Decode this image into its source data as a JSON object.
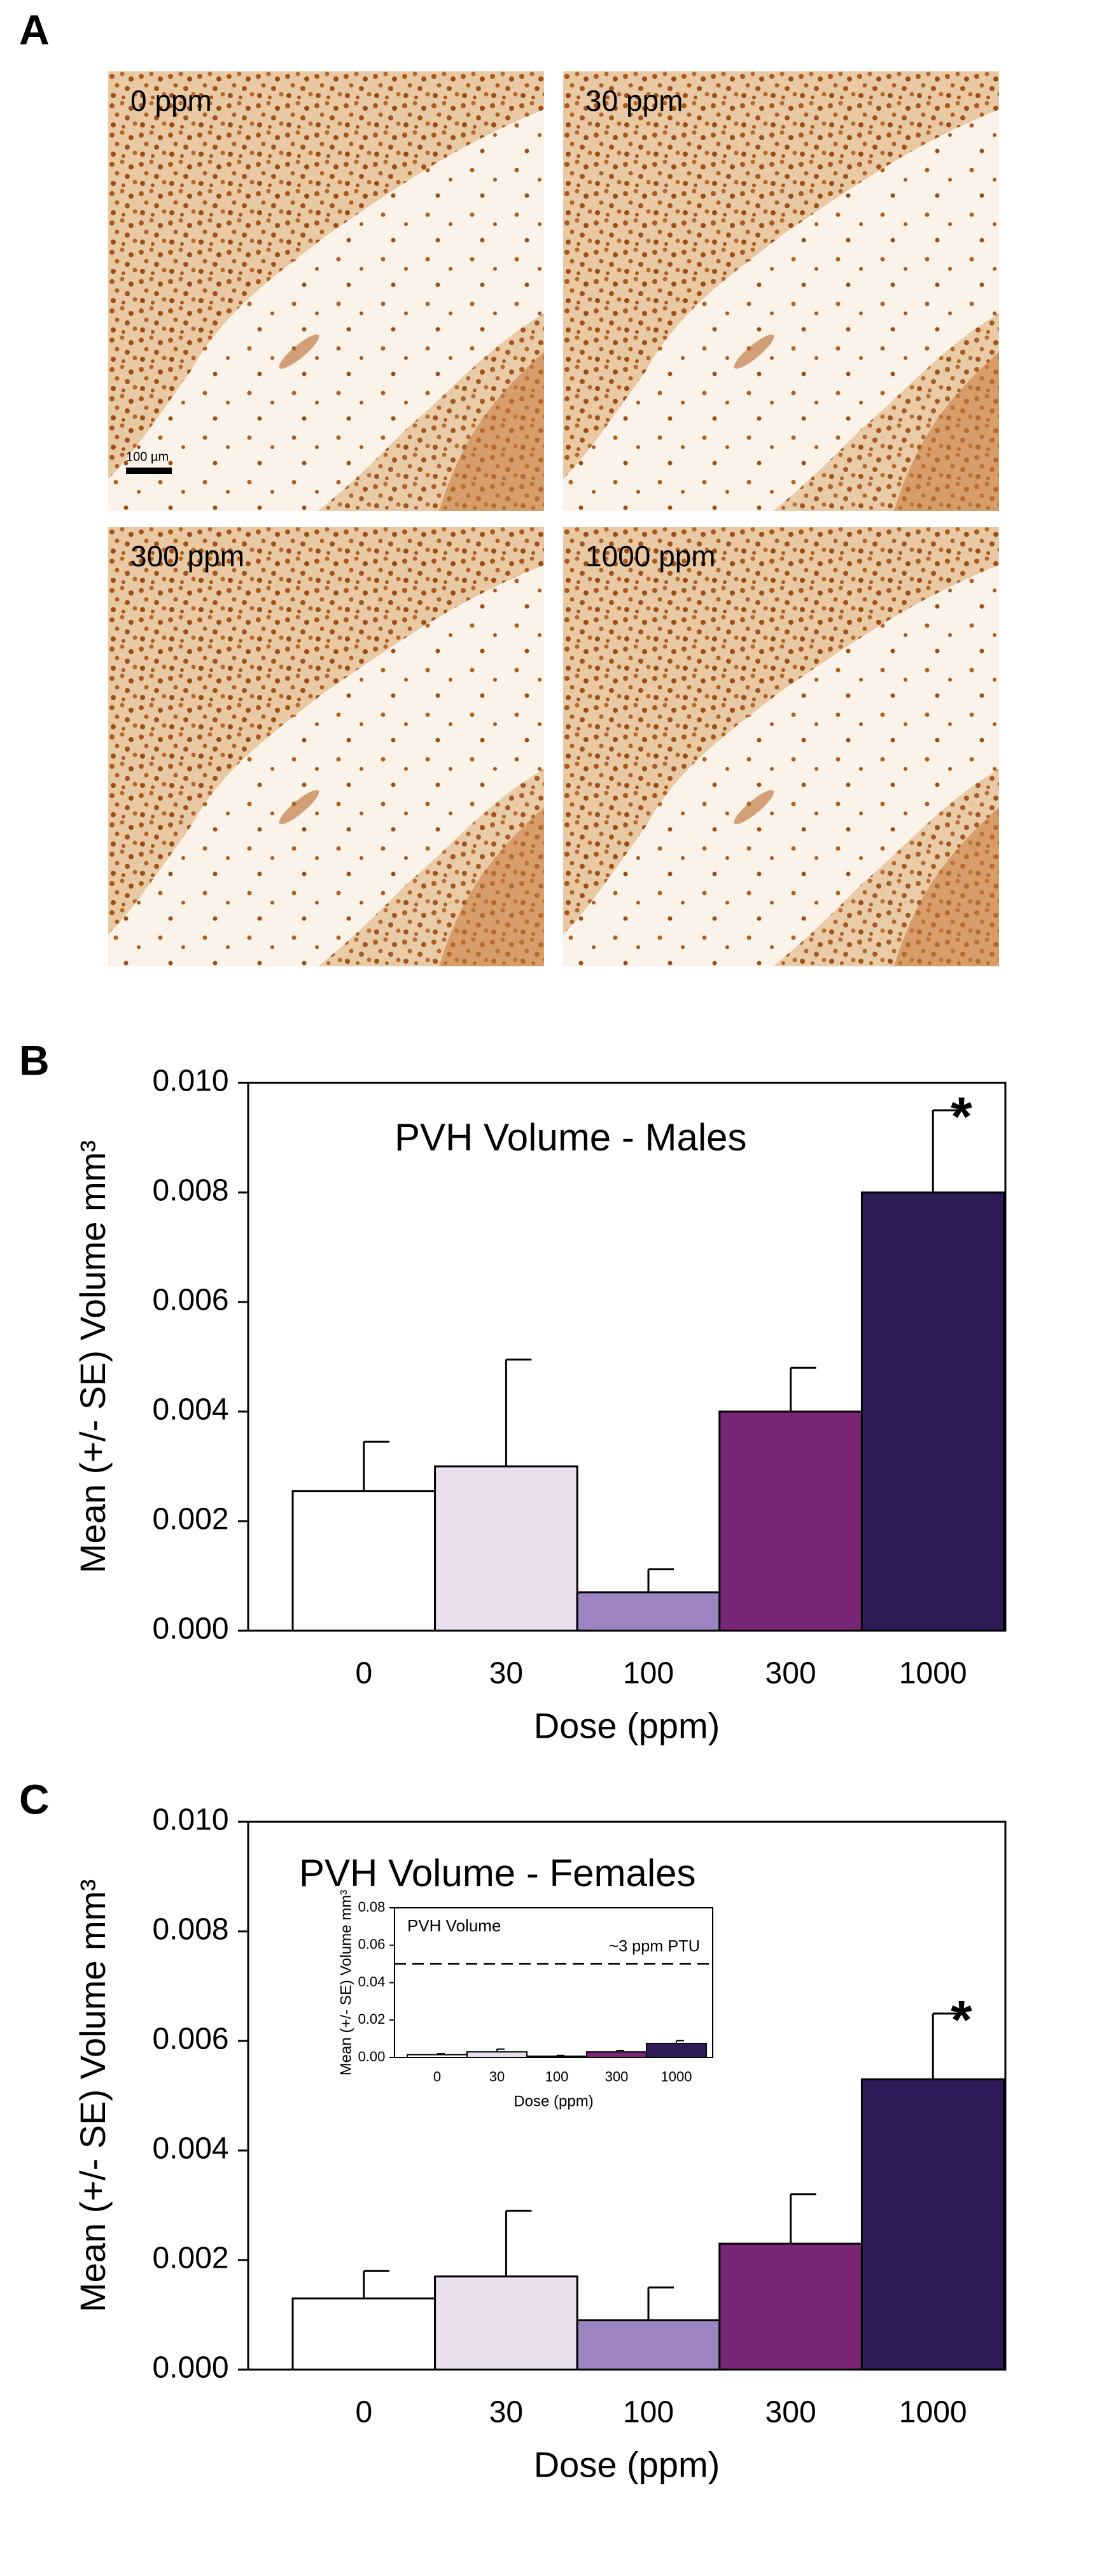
{
  "panel_a": {
    "label": "A",
    "images": [
      {
        "label": "0 ppm"
      },
      {
        "label": "30 ppm"
      },
      {
        "label": "300 ppm"
      },
      {
        "label": "1000 ppm"
      }
    ],
    "scale_bar": "100 µm"
  },
  "chart_data": [
    {
      "type": "bar",
      "panel": "B",
      "title": "PVH Volume - Males",
      "x_label": "Dose (ppm)",
      "y_label": "Mean (+/- SE) Volume mm³",
      "categories": [
        "0",
        "30",
        "100",
        "300",
        "1000"
      ],
      "values": [
        0.00255,
        0.003,
        0.0007,
        0.004,
        0.008
      ],
      "errors": [
        0.0009,
        0.00195,
        0.00042,
        0.0008,
        0.0015
      ],
      "colors": [
        "#ffffff",
        "#e9dfee",
        "#9d84c2",
        "#7a2677",
        "#2f1b57"
      ],
      "ylim": [
        0,
        0.01
      ],
      "yticks": [
        {
          "value": 0,
          "label": "0.000"
        },
        {
          "value": 0.002,
          "label": "0.002"
        },
        {
          "value": 0.004,
          "label": "0.004"
        },
        {
          "value": 0.006,
          "label": "0.006"
        },
        {
          "value": 0.008,
          "label": "0.008"
        },
        {
          "value": 0.01,
          "label": "0.010"
        }
      ],
      "annotation": {
        "text": "*",
        "category": "1000"
      }
    },
    {
      "type": "bar",
      "panel": "C",
      "title": "PVH Volume - Females",
      "x_label": "Dose (ppm)",
      "y_label": "Mean (+/- SE) Volume mm³",
      "categories": [
        "0",
        "30",
        "100",
        "300",
        "1000"
      ],
      "values": [
        0.0013,
        0.0017,
        0.0009,
        0.0023,
        0.0053
      ],
      "errors": [
        0.0005,
        0.0012,
        0.0006,
        0.0009,
        0.0012
      ],
      "colors": [
        "#ffffff",
        "#e9dfee",
        "#9d84c2",
        "#7a2677",
        "#2f1b57"
      ],
      "ylim": [
        0,
        0.01
      ],
      "yticks": [
        {
          "value": 0,
          "label": "0.000"
        },
        {
          "value": 0.002,
          "label": "0.002"
        },
        {
          "value": 0.004,
          "label": "0.004"
        },
        {
          "value": 0.006,
          "label": "0.006"
        },
        {
          "value": 0.008,
          "label": "0.008"
        },
        {
          "value": 0.01,
          "label": "0.010"
        }
      ],
      "annotation": {
        "text": "*",
        "category": "1000"
      },
      "inset": {
        "type": "bar",
        "title": "PVH Volume",
        "x_label": "Dose (ppm)",
        "y_label": "Mean (+/- SE) Volume mm³",
        "categories": [
          "0",
          "30",
          "100",
          "300",
          "1000"
        ],
        "values": [
          0.0015,
          0.003,
          0.0007,
          0.003,
          0.0075
        ],
        "errors": [
          0.0005,
          0.0015,
          0.0004,
          0.0007,
          0.0015
        ],
        "colors": [
          "#ffffff",
          "#e9dfee",
          "#9d84c2",
          "#7a2677",
          "#2f1b57"
        ],
        "ylim": [
          0,
          0.08
        ],
        "yticks": [
          {
            "value": 0,
            "label": "0.00"
          },
          {
            "value": 0.02,
            "label": "0.02"
          },
          {
            "value": 0.04,
            "label": "0.04"
          },
          {
            "value": 0.06,
            "label": "0.06"
          },
          {
            "value": 0.08,
            "label": "0.08"
          }
        ],
        "reference_line": {
          "value": 0.05,
          "label": "~3 ppm PTU"
        }
      }
    }
  ]
}
